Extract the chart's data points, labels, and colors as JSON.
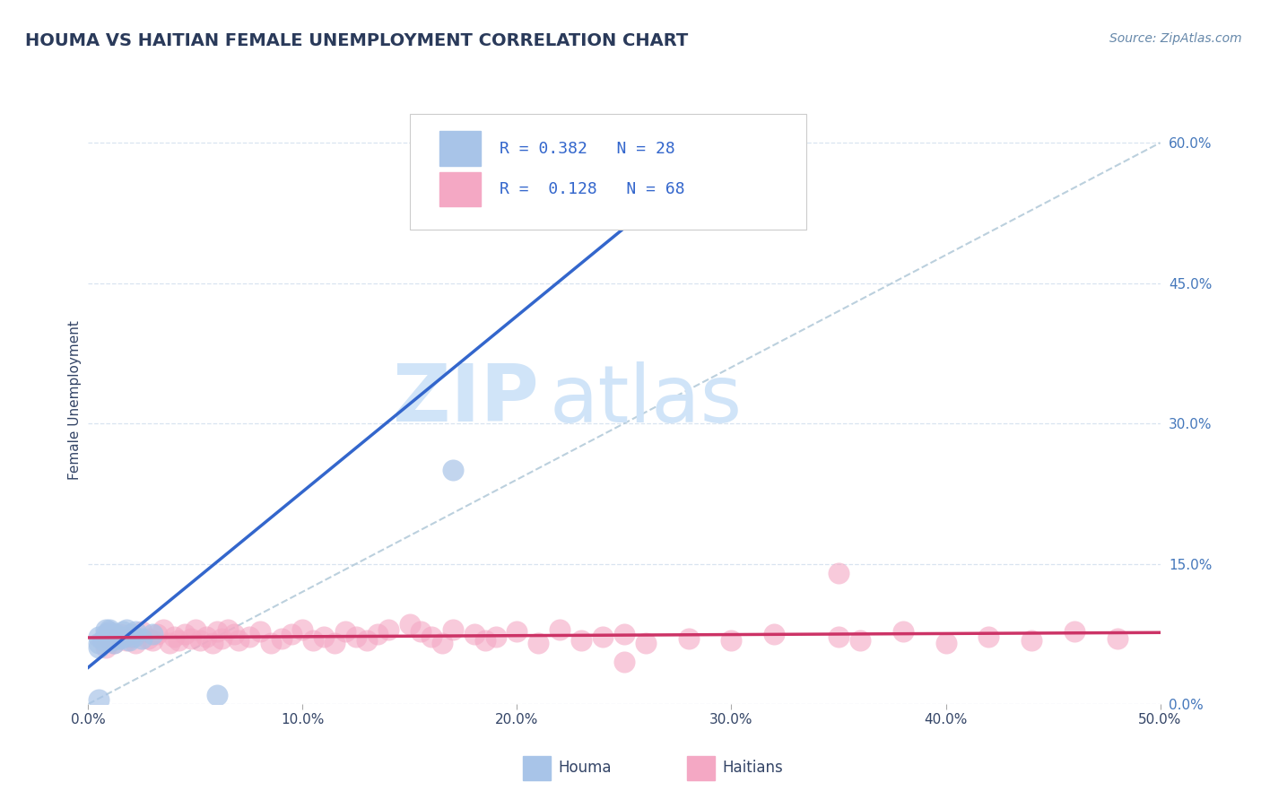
{
  "title": "HOUMA VS HAITIAN FEMALE UNEMPLOYMENT CORRELATION CHART",
  "source_text": "Source: ZipAtlas.com",
  "ylabel": "Female Unemployment",
  "xlim": [
    0.0,
    0.5
  ],
  "ylim": [
    0.0,
    0.65
  ],
  "xtick_vals": [
    0.0,
    0.1,
    0.2,
    0.3,
    0.4,
    0.5
  ],
  "xticklabels": [
    "0.0%",
    "10.0%",
    "20.0%",
    "30.0%",
    "40.0%",
    "50.0%"
  ],
  "ytick_vals": [
    0.0,
    0.15,
    0.3,
    0.45,
    0.6
  ],
  "yticklabels": [
    "0.0%",
    "15.0%",
    "30.0%",
    "45.0%",
    "60.0%"
  ],
  "houma_R": 0.382,
  "houma_N": 28,
  "haitian_R": 0.128,
  "haitian_N": 68,
  "houma_color": "#a8c4e8",
  "haitian_color": "#f4a8c4",
  "houma_line_color": "#3366cc",
  "haitian_line_color": "#cc3366",
  "ref_line_color": "#b0c8d8",
  "grid_color": "#d8e4f0",
  "title_color": "#2a3a5a",
  "label_color": "#334466",
  "tick_color": "#4477bb",
  "background_color": "#ffffff",
  "watermark_zip": "ZIP",
  "watermark_atlas": "atlas",
  "watermark_color": "#d0e4f8",
  "legend_text_color": "#3366cc",
  "legend_border_color": "#cccccc",
  "houma_scatter_x": [
    0.005,
    0.005,
    0.005,
    0.007,
    0.008,
    0.008,
    0.009,
    0.01,
    0.01,
    0.01,
    0.011,
    0.012,
    0.013,
    0.014,
    0.015,
    0.016,
    0.017,
    0.018,
    0.019,
    0.02,
    0.021,
    0.022,
    0.025,
    0.03,
    0.005,
    0.06,
    0.17,
    0.24
  ],
  "houma_scatter_y": [
    0.06,
    0.065,
    0.072,
    0.068,
    0.075,
    0.08,
    0.072,
    0.075,
    0.078,
    0.08,
    0.068,
    0.065,
    0.075,
    0.072,
    0.07,
    0.078,
    0.072,
    0.08,
    0.068,
    0.075,
    0.072,
    0.078,
    0.07,
    0.075,
    0.005,
    0.01,
    0.25,
    0.6
  ],
  "haitian_scatter_x": [
    0.008,
    0.01,
    0.012,
    0.015,
    0.018,
    0.02,
    0.022,
    0.025,
    0.028,
    0.03,
    0.032,
    0.035,
    0.038,
    0.04,
    0.042,
    0.045,
    0.048,
    0.05,
    0.052,
    0.055,
    0.058,
    0.06,
    0.062,
    0.065,
    0.068,
    0.07,
    0.075,
    0.08,
    0.085,
    0.09,
    0.095,
    0.1,
    0.105,
    0.11,
    0.115,
    0.12,
    0.125,
    0.13,
    0.135,
    0.14,
    0.15,
    0.155,
    0.16,
    0.165,
    0.17,
    0.18,
    0.185,
    0.19,
    0.2,
    0.21,
    0.22,
    0.23,
    0.24,
    0.25,
    0.26,
    0.28,
    0.3,
    0.32,
    0.35,
    0.36,
    0.38,
    0.4,
    0.42,
    0.44,
    0.46,
    0.48,
    0.35,
    0.25
  ],
  "haitian_scatter_y": [
    0.06,
    0.07,
    0.065,
    0.075,
    0.068,
    0.072,
    0.065,
    0.078,
    0.07,
    0.068,
    0.075,
    0.08,
    0.065,
    0.072,
    0.068,
    0.075,
    0.07,
    0.08,
    0.068,
    0.072,
    0.065,
    0.078,
    0.07,
    0.08,
    0.075,
    0.068,
    0.072,
    0.078,
    0.065,
    0.07,
    0.075,
    0.08,
    0.068,
    0.072,
    0.065,
    0.078,
    0.072,
    0.068,
    0.075,
    0.08,
    0.085,
    0.078,
    0.072,
    0.065,
    0.08,
    0.075,
    0.068,
    0.072,
    0.078,
    0.065,
    0.08,
    0.068,
    0.072,
    0.075,
    0.065,
    0.07,
    0.068,
    0.075,
    0.072,
    0.068,
    0.078,
    0.065,
    0.072,
    0.068,
    0.078,
    0.07,
    0.14,
    0.045
  ]
}
